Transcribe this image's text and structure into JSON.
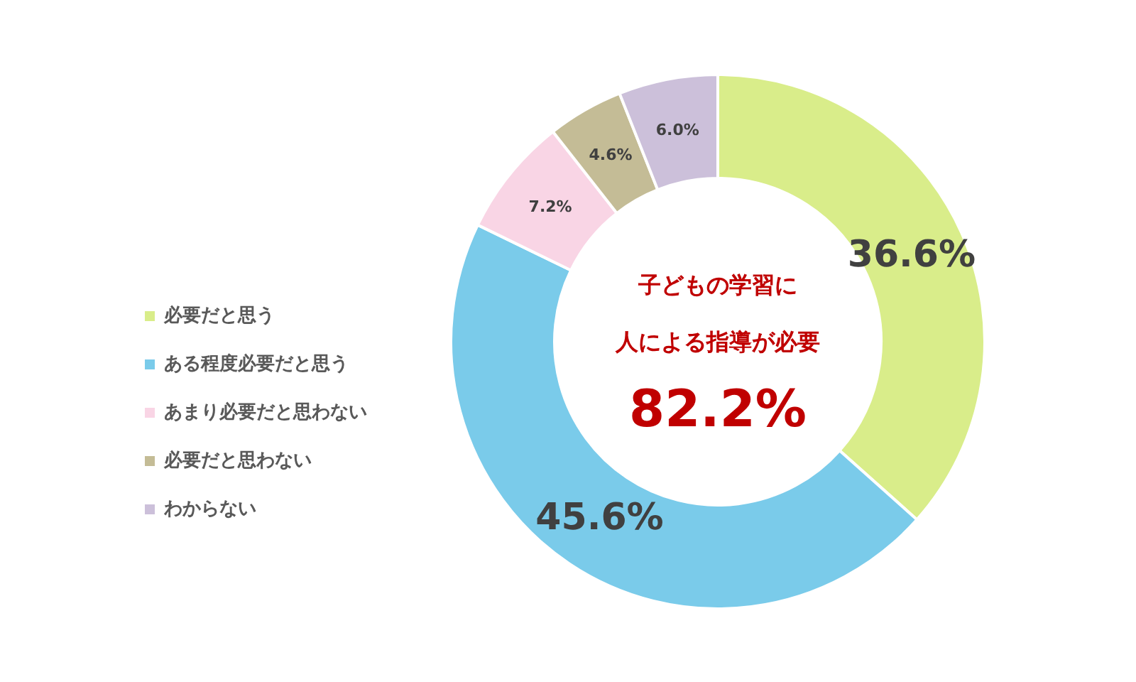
{
  "chart_data": {
    "type": "donut",
    "categories": [
      "必要だと思う",
      "ある程度必要だと思う",
      "あまり必要だと思わない",
      "必要だと思わない",
      "わからない"
    ],
    "values": [
      36.6,
      45.6,
      7.2,
      4.6,
      6.0
    ],
    "colors": [
      "#d9ed8a",
      "#7acbea",
      "#f9d5e5",
      "#c4bc96",
      "#ccc0da"
    ],
    "value_labels": [
      "36.6%",
      "45.6%",
      "7.2%",
      "4.6%",
      "6.0%"
    ],
    "legend": "left",
    "annotations": [
      "子どもの学習に",
      "人による指導が必要",
      "82.2%"
    ]
  }
}
